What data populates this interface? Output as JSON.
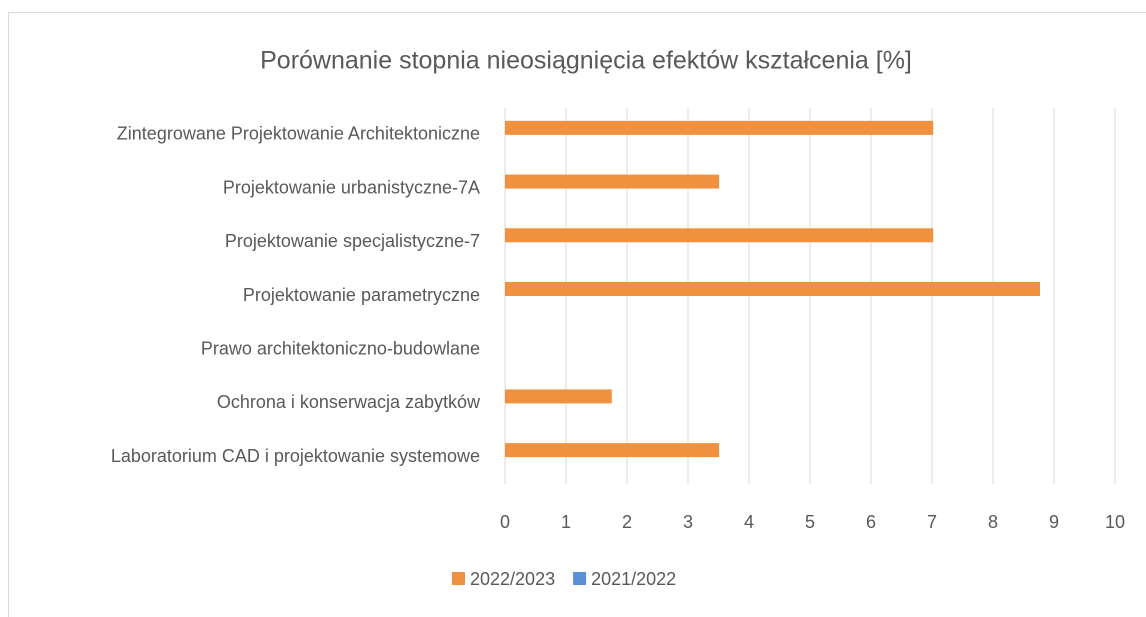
{
  "chart_data": {
    "type": "bar",
    "orientation": "horizontal",
    "title": "Porównanie stopnia nieosiągnięcia efektów kształcenia [%]",
    "categories": [
      "Zintegrowane Projektowanie Architektoniczne",
      "Projektowanie urbanistyczne-7A",
      "Projektowanie specjalistyczne-7",
      "Projektowanie parametryczne",
      "Prawo architektoniczno-budowlane",
      "Ochrona i konserwacja zabytków",
      "Laboratorium CAD i projektowanie systemowe"
    ],
    "series": [
      {
        "name": "2022/2023",
        "color": "#f0913f",
        "values": [
          7.02,
          3.51,
          7.02,
          8.77,
          0,
          1.75,
          3.51
        ]
      },
      {
        "name": "2021/2022",
        "color": "#5b8fd6",
        "values": [
          0,
          0,
          0,
          0,
          0,
          0,
          0
        ]
      }
    ],
    "xlim": [
      0,
      10
    ],
    "xticks": [
      0,
      1,
      2,
      3,
      4,
      5,
      6,
      7,
      8,
      9,
      10
    ],
    "grid": true,
    "legend": "bottom"
  }
}
